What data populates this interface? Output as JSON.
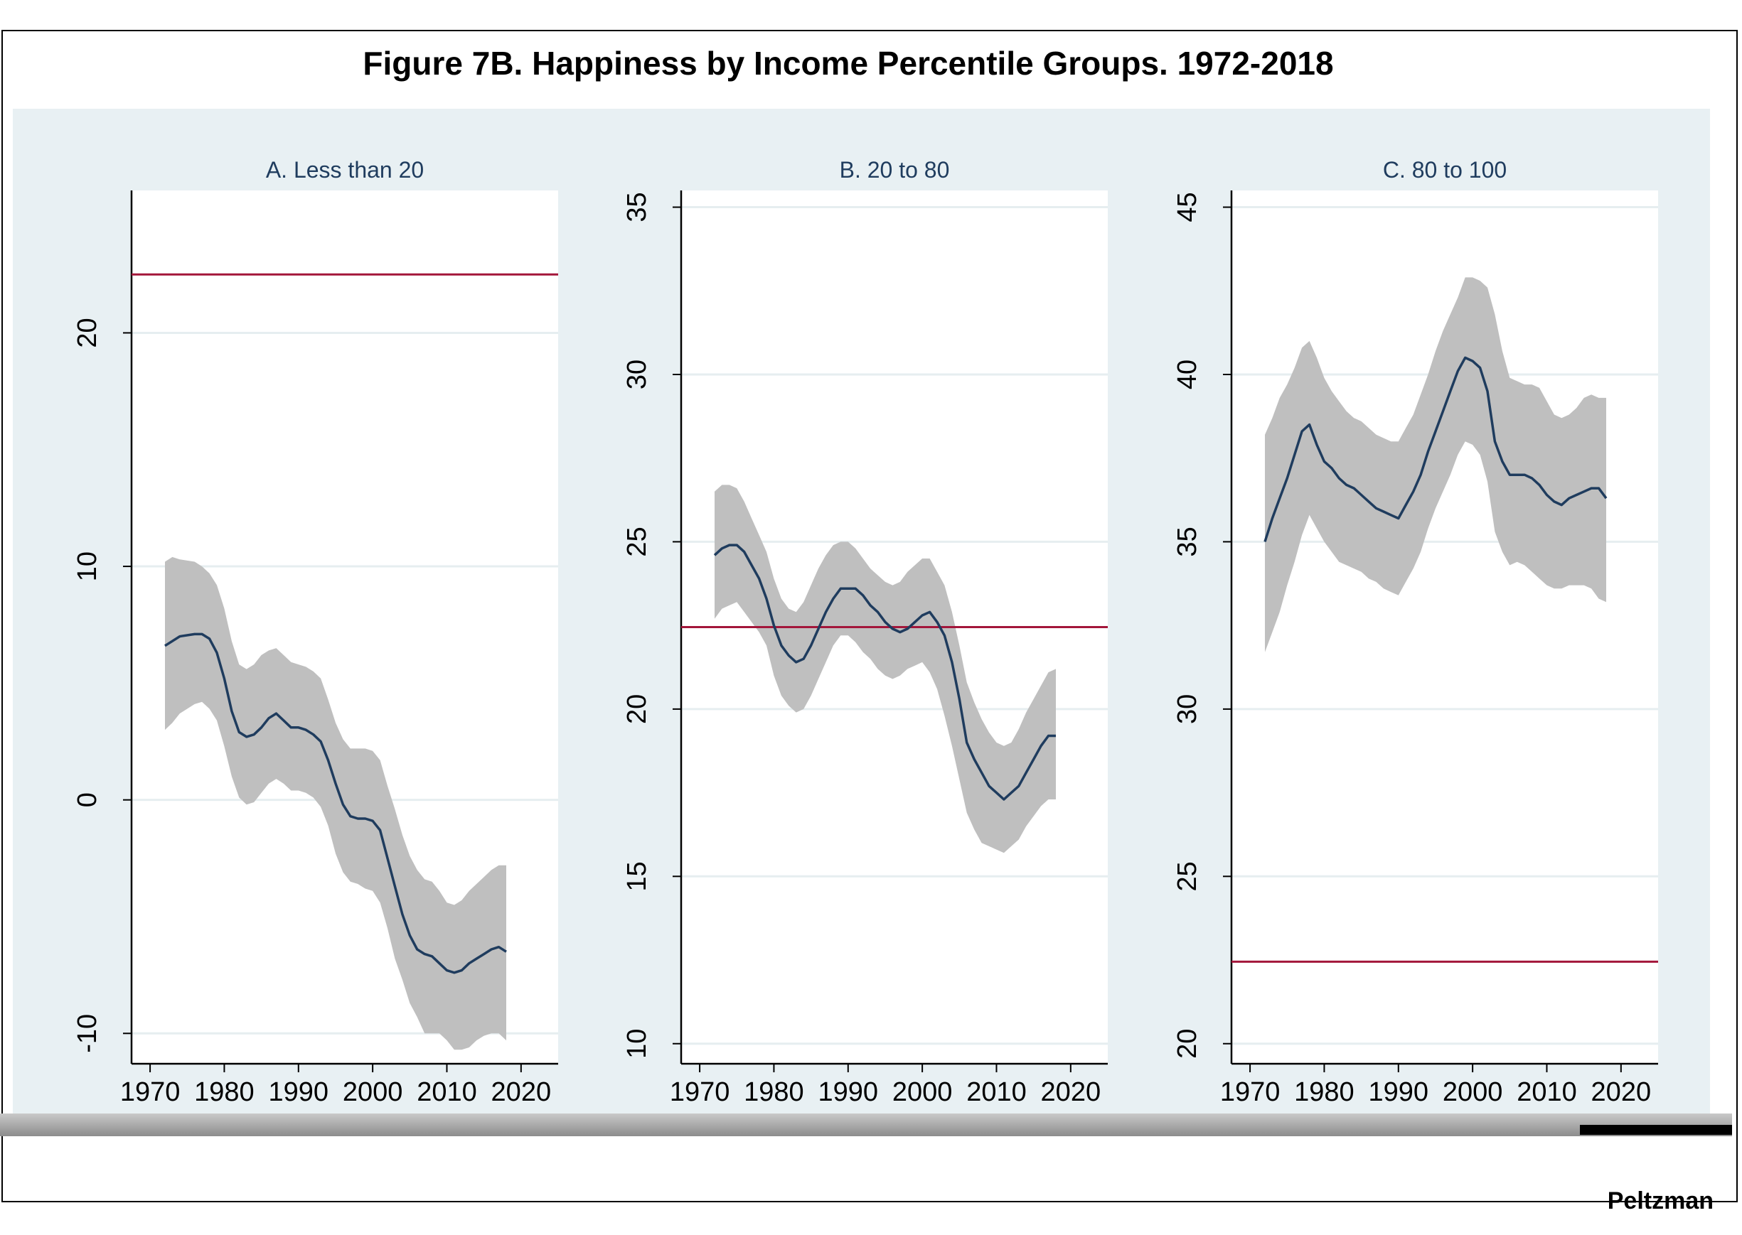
{
  "title": "Figure 7B.  Happiness by Income Percentile Groups. 1972-2018",
  "footer": "Peltzman",
  "colors": {
    "band": "#bfbfbf",
    "line": "#1f3c5e",
    "ref": "#a3163a",
    "panel_bg": "#e8f0f3",
    "grid": "#e6eef0"
  },
  "chart_data": [
    {
      "type": "line",
      "title": "A. Less than 20",
      "xticks": [
        1970,
        1980,
        1990,
        2000,
        2010,
        2020
      ],
      "yticks": [
        -10,
        0,
        10,
        20
      ],
      "xlim": [
        1967.5,
        2025
      ],
      "ylim": [
        -11.3,
        26.1
      ],
      "reference_line": 22.5,
      "series": [
        {
          "name": "estimate",
          "x": [
            1972,
            1974,
            1976,
            1977,
            1978,
            1979,
            1980,
            1981,
            1982,
            1983,
            1984,
            1985,
            1986,
            1987,
            1988,
            1989,
            1990,
            1991,
            1992,
            1993,
            1994,
            1995,
            1996,
            1997,
            1998,
            1999,
            2000,
            2001,
            2002,
            2003,
            2004,
            2005,
            2006,
            2007,
            2008,
            2009,
            2010,
            2011,
            2012,
            2013,
            2014,
            2015,
            2016,
            2017,
            2018
          ],
          "y": [
            6.6,
            7.0,
            7.1,
            7.1,
            6.9,
            6.3,
            5.2,
            3.8,
            2.9,
            2.7,
            2.8,
            3.1,
            3.5,
            3.7,
            3.4,
            3.1,
            3.1,
            3.0,
            2.8,
            2.5,
            1.7,
            0.7,
            -0.2,
            -0.7,
            -0.8,
            -0.8,
            -0.9,
            -1.3,
            -2.5,
            -3.7,
            -4.9,
            -5.8,
            -6.4,
            -6.6,
            -6.7,
            -7.0,
            -7.3,
            -7.4,
            -7.3,
            -7.0,
            -6.8,
            -6.6,
            -6.4,
            -6.3,
            -6.5
          ]
        },
        {
          "name": "ci_upper",
          "x": [
            1972,
            1973,
            1974,
            1976,
            1977,
            1978,
            1979,
            1980,
            1981,
            1982,
            1983,
            1984,
            1985,
            1986,
            1987,
            1988,
            1989,
            1990,
            1991,
            1992,
            1993,
            1994,
            1995,
            1996,
            1997,
            1998,
            1999,
            2000,
            2001,
            2002,
            2003,
            2004,
            2005,
            2006,
            2007,
            2008,
            2009,
            2010,
            2011,
            2012,
            2013,
            2014,
            2015,
            2016,
            2017,
            2018
          ],
          "y": [
            10.2,
            10.4,
            10.3,
            10.2,
            10.0,
            9.7,
            9.2,
            8.2,
            6.8,
            5.8,
            5.6,
            5.8,
            6.2,
            6.4,
            6.5,
            6.2,
            5.9,
            5.8,
            5.7,
            5.5,
            5.2,
            4.3,
            3.3,
            2.6,
            2.2,
            2.2,
            2.2,
            2.1,
            1.7,
            0.6,
            -0.4,
            -1.5,
            -2.4,
            -3.0,
            -3.4,
            -3.5,
            -3.9,
            -4.4,
            -4.5,
            -4.3,
            -3.9,
            -3.6,
            -3.3,
            -3.0,
            -2.8,
            -2.8
          ]
        },
        {
          "name": "ci_lower",
          "x": [
            1972,
            1973,
            1974,
            1975,
            1976,
            1977,
            1978,
            1979,
            1980,
            1981,
            1982,
            1983,
            1984,
            1985,
            1986,
            1987,
            1988,
            1989,
            1990,
            1991,
            1992,
            1993,
            1994,
            1995,
            1996,
            1997,
            1998,
            1999,
            2000,
            2001,
            2002,
            2003,
            2004,
            2005,
            2006,
            2007,
            2008,
            2009,
            2010,
            2011,
            2012,
            2013,
            2014,
            2015,
            2016,
            2017,
            2018
          ],
          "y": [
            3.0,
            3.3,
            3.7,
            3.9,
            4.1,
            4.2,
            3.9,
            3.4,
            2.3,
            1.0,
            0.1,
            -0.2,
            -0.1,
            0.3,
            0.7,
            0.9,
            0.7,
            0.4,
            0.4,
            0.3,
            0.1,
            -0.3,
            -1.1,
            -2.3,
            -3.1,
            -3.5,
            -3.6,
            -3.8,
            -3.9,
            -4.4,
            -5.5,
            -6.8,
            -7.7,
            -8.7,
            -9.3,
            -10.0,
            -10.0,
            -10.0,
            -10.3,
            -10.7,
            -10.7,
            -10.6,
            -10.3,
            -10.1,
            -10.0,
            -10.0,
            -10.3
          ]
        }
      ]
    },
    {
      "type": "line",
      "title": "B.  20 to 80",
      "xticks": [
        1970,
        1980,
        1990,
        2000,
        2010,
        2020
      ],
      "yticks": [
        10,
        15,
        20,
        25,
        30,
        35
      ],
      "xlim": [
        1967.5,
        2025
      ],
      "ylim": [
        9.4,
        35.5
      ],
      "reference_line": 22.45,
      "series": [
        {
          "name": "estimate",
          "x": [
            1972,
            1973,
            1974,
            1975,
            1976,
            1977,
            1978,
            1979,
            1980,
            1981,
            1982,
            1983,
            1984,
            1985,
            1986,
            1987,
            1988,
            1989,
            1990,
            1991,
            1992,
            1993,
            1994,
            1995,
            1996,
            1997,
            1998,
            1999,
            2000,
            2001,
            2002,
            2003,
            2004,
            2005,
            2006,
            2007,
            2008,
            2009,
            2010,
            2011,
            2012,
            2013,
            2014,
            2015,
            2016,
            2017,
            2018
          ],
          "y": [
            24.6,
            24.8,
            24.9,
            24.9,
            24.7,
            24.3,
            23.9,
            23.3,
            22.5,
            21.9,
            21.6,
            21.4,
            21.5,
            21.9,
            22.4,
            22.9,
            23.3,
            23.6,
            23.6,
            23.6,
            23.4,
            23.1,
            22.9,
            22.6,
            22.4,
            22.3,
            22.4,
            22.6,
            22.8,
            22.9,
            22.6,
            22.2,
            21.4,
            20.3,
            19.0,
            18.5,
            18.1,
            17.7,
            17.5,
            17.3,
            17.5,
            17.7,
            18.1,
            18.5,
            18.9,
            19.2,
            19.2
          ]
        },
        {
          "name": "ci_upper",
          "x": [
            1972,
            1973,
            1974,
            1975,
            1976,
            1977,
            1978,
            1979,
            1980,
            1981,
            1982,
            1983,
            1984,
            1985,
            1986,
            1987,
            1988,
            1989,
            1990,
            1991,
            1992,
            1993,
            1994,
            1995,
            1996,
            1997,
            1998,
            1999,
            2000,
            2001,
            2002,
            2003,
            2004,
            2005,
            2006,
            2007,
            2008,
            2009,
            2010,
            2011,
            2012,
            2013,
            2014,
            2015,
            2016,
            2017,
            2018
          ],
          "y": [
            26.5,
            26.7,
            26.7,
            26.6,
            26.2,
            25.7,
            25.2,
            24.7,
            23.9,
            23.3,
            23.0,
            22.9,
            23.2,
            23.7,
            24.2,
            24.6,
            24.9,
            25.0,
            25.0,
            24.8,
            24.5,
            24.2,
            24.0,
            23.8,
            23.7,
            23.8,
            24.1,
            24.3,
            24.5,
            24.5,
            24.1,
            23.7,
            22.9,
            21.9,
            20.8,
            20.2,
            19.7,
            19.3,
            19.0,
            18.9,
            19.0,
            19.4,
            19.9,
            20.3,
            20.7,
            21.1,
            21.2
          ]
        },
        {
          "name": "ci_lower",
          "x": [
            1972,
            1973,
            1974,
            1975,
            1976,
            1977,
            1978,
            1979,
            1980,
            1981,
            1982,
            1983,
            1984,
            1985,
            1986,
            1987,
            1988,
            1989,
            1990,
            1991,
            1992,
            1993,
            1994,
            1995,
            1996,
            1997,
            1998,
            1999,
            2000,
            2001,
            2002,
            2003,
            2004,
            2005,
            2006,
            2007,
            2008,
            2009,
            2010,
            2011,
            2012,
            2013,
            2014,
            2015,
            2016,
            2017,
            2018
          ],
          "y": [
            22.7,
            23.0,
            23.1,
            23.2,
            22.9,
            22.6,
            22.3,
            21.9,
            21.0,
            20.4,
            20.1,
            19.9,
            20.0,
            20.4,
            20.9,
            21.4,
            21.9,
            22.2,
            22.2,
            22.0,
            21.7,
            21.5,
            21.2,
            21.0,
            20.9,
            21.0,
            21.2,
            21.3,
            21.4,
            21.1,
            20.6,
            19.8,
            18.9,
            17.9,
            16.9,
            16.4,
            16.0,
            15.9,
            15.8,
            15.7,
            15.9,
            16.1,
            16.5,
            16.8,
            17.1,
            17.3,
            17.3
          ]
        }
      ]
    },
    {
      "type": "line",
      "title": "C. 80 to 100",
      "xticks": [
        1970,
        1980,
        1990,
        2000,
        2010,
        2020
      ],
      "yticks": [
        20,
        25,
        30,
        35,
        40,
        45
      ],
      "xlim": [
        1967.5,
        2025
      ],
      "ylim": [
        19.4,
        45.5
      ],
      "reference_line": 22.45,
      "series": [
        {
          "name": "estimate",
          "x": [
            1972,
            1973,
            1974,
            1975,
            1976,
            1977,
            1978,
            1979,
            1980,
            1981,
            1982,
            1983,
            1984,
            1985,
            1986,
            1987,
            1988,
            1989,
            1990,
            1991,
            1992,
            1993,
            1994,
            1995,
            1996,
            1997,
            1998,
            1999,
            2000,
            2001,
            2002,
            2003,
            2004,
            2005,
            2006,
            2007,
            2008,
            2009,
            2010,
            2011,
            2012,
            2013,
            2014,
            2015,
            2016,
            2017,
            2018
          ],
          "y": [
            35.0,
            35.7,
            36.3,
            36.9,
            37.6,
            38.3,
            38.5,
            37.9,
            37.4,
            37.2,
            36.9,
            36.7,
            36.6,
            36.4,
            36.2,
            36.0,
            35.9,
            35.8,
            35.7,
            36.1,
            36.5,
            37.0,
            37.7,
            38.3,
            38.9,
            39.5,
            40.1,
            40.5,
            40.4,
            40.2,
            39.5,
            38.0,
            37.4,
            37.0,
            37.0,
            37.0,
            36.9,
            36.7,
            36.4,
            36.2,
            36.1,
            36.3,
            36.4,
            36.5,
            36.6,
            36.6,
            36.3
          ]
        },
        {
          "name": "ci_upper",
          "x": [
            1972,
            1973,
            1974,
            1975,
            1976,
            1977,
            1978,
            1979,
            1980,
            1981,
            1982,
            1983,
            1984,
            1985,
            1986,
            1987,
            1988,
            1989,
            1990,
            1991,
            1992,
            1993,
            1994,
            1995,
            1996,
            1997,
            1998,
            1999,
            2000,
            2001,
            2002,
            2003,
            2004,
            2005,
            2006,
            2007,
            2008,
            2009,
            2010,
            2011,
            2012,
            2013,
            2014,
            2015,
            2016,
            2017,
            2018
          ],
          "y": [
            38.2,
            38.7,
            39.3,
            39.7,
            40.2,
            40.8,
            41.0,
            40.5,
            39.9,
            39.5,
            39.2,
            38.9,
            38.7,
            38.6,
            38.4,
            38.2,
            38.1,
            38.0,
            38.0,
            38.4,
            38.8,
            39.4,
            40.0,
            40.7,
            41.3,
            41.8,
            42.3,
            42.9,
            42.9,
            42.8,
            42.6,
            41.8,
            40.7,
            39.9,
            39.8,
            39.7,
            39.7,
            39.6,
            39.2,
            38.8,
            38.7,
            38.8,
            39.0,
            39.3,
            39.4,
            39.3,
            39.3
          ]
        },
        {
          "name": "ci_lower",
          "x": [
            1972,
            1973,
            1974,
            1975,
            1976,
            1977,
            1978,
            1979,
            1980,
            1981,
            1982,
            1983,
            1984,
            1985,
            1986,
            1987,
            1988,
            1989,
            1990,
            1991,
            1992,
            1993,
            1994,
            1995,
            1996,
            1997,
            1998,
            1999,
            2000,
            2001,
            2002,
            2003,
            2004,
            2005,
            2006,
            2007,
            2008,
            2009,
            2010,
            2011,
            2012,
            2013,
            2014,
            2015,
            2016,
            2017,
            2018
          ],
          "y": [
            31.7,
            32.3,
            32.9,
            33.7,
            34.4,
            35.2,
            35.8,
            35.4,
            35.0,
            34.7,
            34.4,
            34.3,
            34.2,
            34.1,
            33.9,
            33.8,
            33.6,
            33.5,
            33.4,
            33.8,
            34.2,
            34.7,
            35.4,
            36.0,
            36.5,
            37.0,
            37.6,
            38.0,
            37.9,
            37.6,
            36.8,
            35.3,
            34.7,
            34.3,
            34.4,
            34.3,
            34.1,
            33.9,
            33.7,
            33.6,
            33.6,
            33.7,
            33.7,
            33.7,
            33.6,
            33.3,
            33.2
          ]
        }
      ]
    }
  ]
}
